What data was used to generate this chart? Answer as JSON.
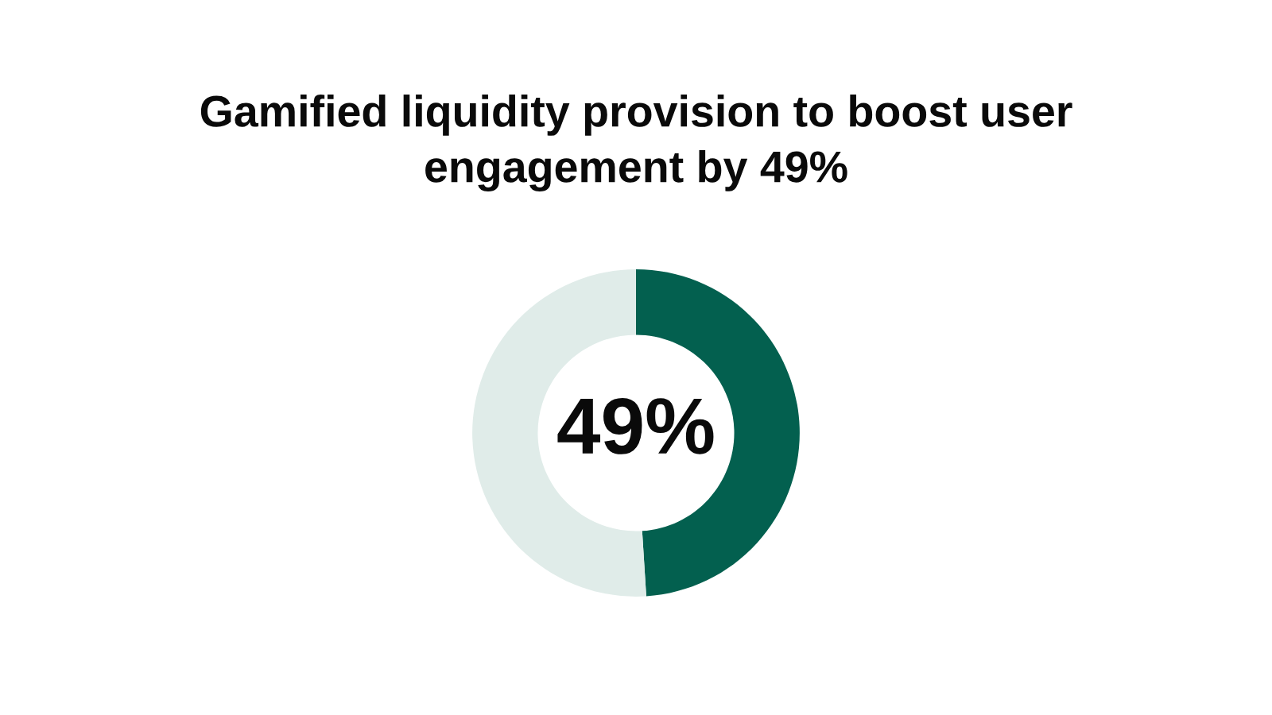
{
  "chart_data": {
    "type": "donut",
    "title": "Gamified liquidity provision to boost user engagement by 49%",
    "categories": [
      null,
      null
    ],
    "values": [
      49,
      51
    ],
    "colors": [
      "#03604f",
      "#e0ece9"
    ],
    "value_labels": [
      "49%",
      null
    ]
  }
}
